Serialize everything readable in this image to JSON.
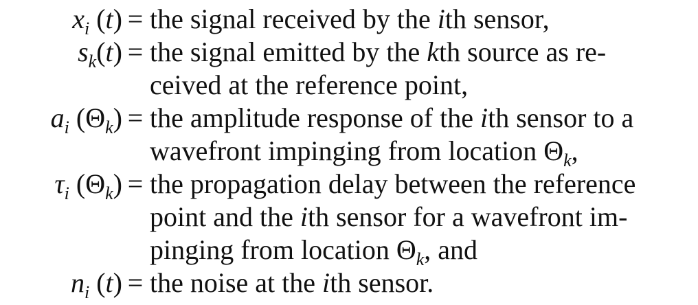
{
  "definitions": [
    {
      "symbol": {
        "base": "x",
        "sub": "i",
        "arg": "t"
      },
      "equals": "=",
      "lines": [
        [
          {
            "t": "the signal received by the "
          },
          {
            "t": "i",
            "it": true
          },
          {
            "t": "th sensor,"
          }
        ]
      ]
    },
    {
      "symbol": {
        "base": "s",
        "sub": "k",
        "arg": "t"
      },
      "equals": "=",
      "lines": [
        [
          {
            "t": "the signal emitted by the "
          },
          {
            "t": "k",
            "it": true
          },
          {
            "t": "th source as re-"
          }
        ],
        [
          {
            "t": "ceived at the reference point,"
          }
        ]
      ]
    },
    {
      "symbol": {
        "base": "a",
        "sub": "i",
        "arg": "Θ",
        "arg_sub": "k"
      },
      "equals": "=",
      "lines": [
        [
          {
            "t": "the amplitude response of the "
          },
          {
            "t": "i",
            "it": true
          },
          {
            "t": "th sensor to a"
          }
        ],
        [
          {
            "t": "wavefront impinging from location Θ"
          },
          {
            "t": "k",
            "sub": true
          },
          {
            "t": ","
          }
        ]
      ]
    },
    {
      "symbol": {
        "base": "τ",
        "sub": "i",
        "arg": "Θ",
        "arg_sub": "k"
      },
      "equals": "=",
      "lines": [
        [
          {
            "t": "the propagation delay between the reference"
          }
        ],
        [
          {
            "t": "point and the "
          },
          {
            "t": "i",
            "it": true
          },
          {
            "t": "th sensor for a wavefront im-"
          }
        ],
        [
          {
            "t": "pinging from location Θ"
          },
          {
            "t": "k",
            "sub": true
          },
          {
            "t": ", and"
          }
        ]
      ]
    },
    {
      "symbol": {
        "base": "n",
        "sub": "i",
        "arg": "t"
      },
      "equals": "=",
      "lines": [
        [
          {
            "t": "the noise at the "
          },
          {
            "t": "i",
            "it": true
          },
          {
            "t": "th sensor."
          }
        ]
      ]
    }
  ]
}
